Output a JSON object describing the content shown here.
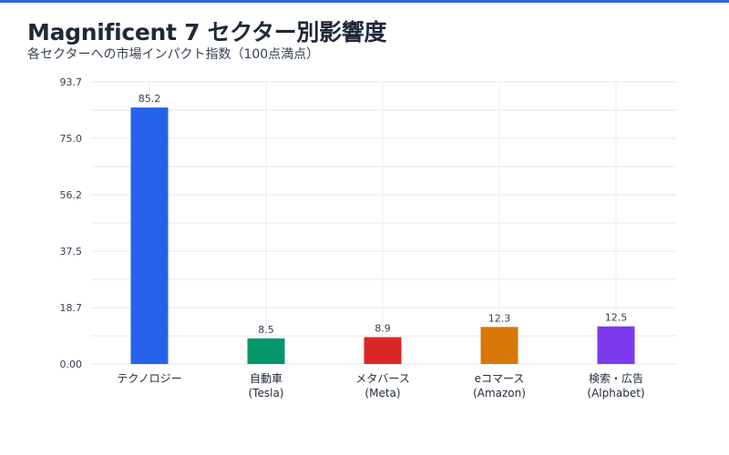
{
  "chart_data": {
    "type": "bar",
    "title": "Magnificent 7 セクター別影響度",
    "subtitle": "各セクターへの市場インパクト指数（100点満点）",
    "categories": [
      [
        "テクノロジー"
      ],
      [
        "自動車",
        "(Tesla)"
      ],
      [
        "メタバース",
        "(Meta)"
      ],
      [
        "eコマース",
        "(Amazon)"
      ],
      [
        "検索・広告",
        "(Alphabet)"
      ]
    ],
    "values": [
      85.2,
      8.5,
      8.9,
      12.3,
      12.5
    ],
    "value_labels": [
      "85.2",
      "8.5",
      "8.9",
      "12.3",
      "12.5"
    ],
    "colors": [
      "#2563eb",
      "#059669",
      "#dc2626",
      "#d97706",
      "#7c3aed"
    ],
    "ylim": [
      0,
      93.7
    ],
    "yticks": [
      "0.00",
      "18.7",
      "37.5",
      "56.2",
      "75.0",
      "93.7"
    ],
    "grid": true,
    "xlabel": "",
    "ylabel": ""
  }
}
